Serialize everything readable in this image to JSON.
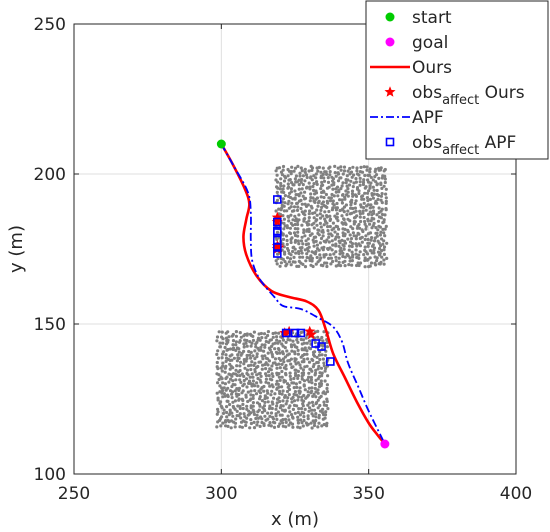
{
  "chart_data": {
    "type": "scatter",
    "title": "",
    "xlabel": "x (m)",
    "ylabel": "y (m)",
    "xlim": [
      250,
      400
    ],
    "ylim": [
      100,
      250
    ],
    "xticks": [
      250,
      300,
      350,
      400
    ],
    "yticks": [
      100,
      150,
      200,
      250
    ],
    "grid": true,
    "legend_position": "top-right",
    "colors": {
      "start": "#00cc00",
      "goal": "#ff00ff",
      "ours": "#ff0000",
      "apf": "#0000ff",
      "obstacles": "#808080"
    },
    "start": {
      "x": 300,
      "y": 210
    },
    "goal": {
      "x": 355.5,
      "y": 110
    },
    "obstacles": [
      {
        "x_range": [
          319,
          356
        ],
        "y_range": [
          169,
          202
        ]
      },
      {
        "x_range": [
          299,
          336
        ],
        "y_range": [
          115,
          147
        ]
      }
    ],
    "series": [
      {
        "name": "Ours",
        "key": "ours",
        "x": [
          300,
          304,
          308,
          309.5,
          308.5,
          307.5,
          308.5,
          312,
          317,
          323,
          329,
          333,
          335.5,
          338,
          342,
          346,
          350,
          353,
          355.5
        ],
        "y": [
          210,
          203,
          195,
          190,
          185,
          179,
          173,
          166,
          161,
          159,
          157.5,
          154.5,
          148,
          140,
          132,
          124,
          117,
          113,
          110
        ]
      },
      {
        "name": "APF",
        "key": "apf",
        "x": [
          300,
          304,
          309,
          310,
          310,
          310.5,
          313,
          318,
          321,
          327,
          333,
          338,
          341,
          343,
          346.5,
          350,
          355
        ],
        "y": [
          210,
          203,
          194,
          187,
          178,
          171,
          165,
          159,
          156,
          155,
          152,
          149,
          144,
          137,
          129,
          121,
          111
        ]
      }
    ],
    "obs_affect": [
      {
        "name": "obs_affect Ours",
        "key": "ours",
        "marker": "star",
        "x": [
          319,
          319,
          319,
          319,
          319.5,
          321.5,
          323,
          330,
          330.5
        ],
        "y": [
          185.5,
          184,
          176,
          175,
          175.5,
          147,
          147.5,
          147.5,
          146.5
        ]
      },
      {
        "name": "obs_affect APF",
        "key": "apf",
        "marker": "square",
        "x": [
          319,
          319,
          319,
          319,
          319,
          319,
          319,
          322,
          325,
          327,
          332,
          334,
          337
        ],
        "y": [
          191.5,
          184,
          181,
          180.5,
          178,
          175.5,
          173.5,
          147,
          147,
          147,
          143.5,
          142.5,
          137.5
        ]
      }
    ],
    "legend": [
      {
        "label": "start",
        "key": "start",
        "symbol": "dot"
      },
      {
        "label": "goal",
        "key": "goal",
        "symbol": "dot"
      },
      {
        "label": "Ours",
        "key": "ours",
        "symbol": "line"
      },
      {
        "label": "obs",
        "sub": "affect",
        "suffix": " Ours",
        "key": "ours",
        "symbol": "star"
      },
      {
        "label": "APF",
        "key": "apf",
        "symbol": "dashdot"
      },
      {
        "label": "obs",
        "sub": "affect",
        "suffix": " APF",
        "key": "apf",
        "symbol": "square"
      }
    ]
  }
}
